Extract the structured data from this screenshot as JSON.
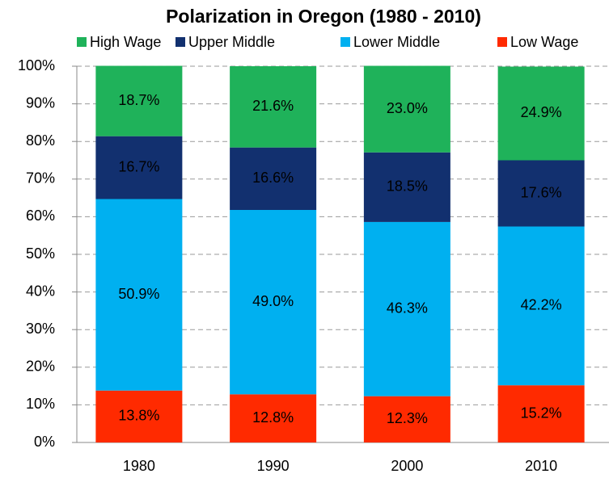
{
  "chart_data": {
    "type": "stacked_bar",
    "title": "Polarization in Oregon (1980 - 2010)",
    "categories": [
      "1980",
      "1990",
      "2000",
      "2010"
    ],
    "series": [
      {
        "name": "High Wage",
        "color": "#1fb25a",
        "values": [
          18.7,
          21.6,
          23.0,
          24.9
        ],
        "value_labels": [
          "18.7%",
          "21.6%",
          "23.0%",
          "24.9%"
        ]
      },
      {
        "name": "Upper Middle",
        "color": "#12306f",
        "values": [
          16.7,
          16.6,
          18.5,
          17.6
        ],
        "value_labels": [
          "16.7%",
          "16.6%",
          "18.5%",
          "17.6%"
        ]
      },
      {
        "name": "Lower Middle",
        "color": "#00b0f0",
        "values": [
          50.9,
          49.0,
          46.3,
          42.2
        ],
        "value_labels": [
          "50.9%",
          "49.0%",
          "46.3%",
          "42.2%"
        ]
      },
      {
        "name": "Low Wage",
        "color": "#ff2a00",
        "values": [
          13.8,
          12.8,
          12.3,
          15.2
        ],
        "value_labels": [
          "13.8%",
          "12.8%",
          "12.3%",
          "15.2%"
        ]
      }
    ],
    "ylim": [
      0,
      100
    ],
    "yticks": [
      {
        "value": 0,
        "label": "0%"
      },
      {
        "value": 10,
        "label": "10%"
      },
      {
        "value": 20,
        "label": "20%"
      },
      {
        "value": 30,
        "label": "30%"
      },
      {
        "value": 40,
        "label": "40%"
      },
      {
        "value": 50,
        "label": "50%"
      },
      {
        "value": 60,
        "label": "60%"
      },
      {
        "value": 70,
        "label": "70%"
      },
      {
        "value": 80,
        "label": "80%"
      },
      {
        "value": 90,
        "label": "90%"
      },
      {
        "value": 100,
        "label": "100%"
      }
    ],
    "grid": true,
    "legend": "top"
  }
}
